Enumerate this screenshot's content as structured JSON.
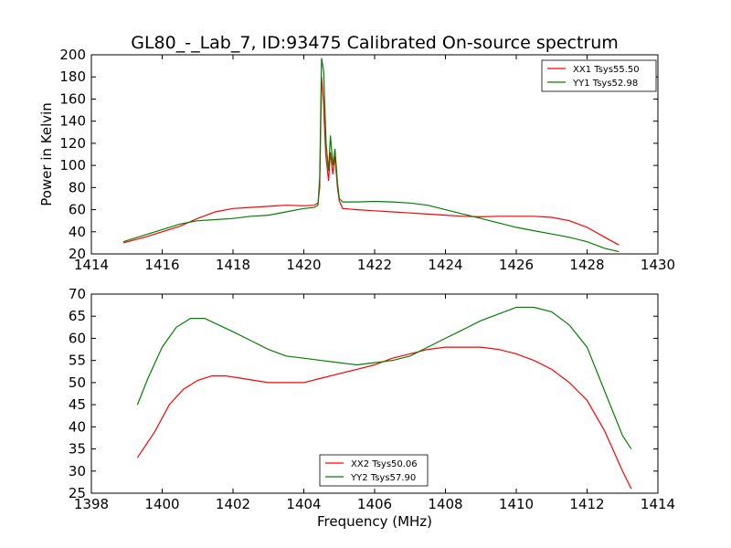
{
  "figure": {
    "title": "GL80_-_Lab_7, ID:93475 Calibrated On-source spectrum"
  },
  "chart_data": [
    {
      "type": "line",
      "title": "GL80_-_Lab_7, ID:93475 Calibrated On-source spectrum",
      "xlabel": "",
      "ylabel": "Power in Kelvin",
      "xlim": [
        1414,
        1430
      ],
      "ylim": [
        20,
        200
      ],
      "xticks": [
        "1414",
        "1416",
        "1418",
        "1420",
        "1422",
        "1424",
        "1426",
        "1428",
        "1430"
      ],
      "yticks": [
        "20",
        "40",
        "60",
        "80",
        "100",
        "120",
        "140",
        "160",
        "180",
        "200"
      ],
      "grid": false,
      "legend_position": "top-right",
      "series": [
        {
          "name": "XX1 Tsys55.50",
          "color": "#ff0000",
          "points": [
            [
              1414.9,
              30
            ],
            [
              1415.5,
              35
            ],
            [
              1416,
              40
            ],
            [
              1416.5,
              45
            ],
            [
              1417,
              52
            ],
            [
              1417.5,
              58
            ],
            [
              1418,
              61
            ],
            [
              1418.5,
              62
            ],
            [
              1419,
              63
            ],
            [
              1419.5,
              64
            ],
            [
              1420,
              63.5
            ],
            [
              1420.3,
              64
            ],
            [
              1420.4,
              66
            ],
            [
              1420.45,
              80
            ],
            [
              1420.5,
              180
            ],
            [
              1420.55,
              160
            ],
            [
              1420.62,
              110
            ],
            [
              1420.7,
              86
            ],
            [
              1420.75,
              112
            ],
            [
              1420.82,
              92
            ],
            [
              1420.88,
              108
            ],
            [
              1420.95,
              80
            ],
            [
              1421,
              68
            ],
            [
              1421.1,
              61
            ],
            [
              1421.5,
              60
            ],
            [
              1422,
              59
            ],
            [
              1422.5,
              58
            ],
            [
              1423,
              57
            ],
            [
              1423.5,
              56
            ],
            [
              1424,
              55
            ],
            [
              1424.5,
              54
            ],
            [
              1425,
              53.5
            ],
            [
              1425.5,
              54
            ],
            [
              1426,
              54
            ],
            [
              1426.5,
              54
            ],
            [
              1427,
              53
            ],
            [
              1427.5,
              50
            ],
            [
              1428,
              44
            ],
            [
              1428.5,
              35
            ],
            [
              1428.9,
              28
            ]
          ]
        },
        {
          "name": "YY1 Tsys52.98",
          "color": "#008000",
          "points": [
            [
              1414.9,
              31
            ],
            [
              1415.5,
              37
            ],
            [
              1416,
              42
            ],
            [
              1416.5,
              47
            ],
            [
              1417,
              50
            ],
            [
              1417.5,
              51
            ],
            [
              1418,
              52
            ],
            [
              1418.5,
              54
            ],
            [
              1419,
              55
            ],
            [
              1419.5,
              58
            ],
            [
              1420,
              61
            ],
            [
              1420.3,
              62
            ],
            [
              1420.4,
              64
            ],
            [
              1420.45,
              90
            ],
            [
              1420.5,
              197
            ],
            [
              1420.56,
              185
            ],
            [
              1420.63,
              120
            ],
            [
              1420.7,
              95
            ],
            [
              1420.75,
              127
            ],
            [
              1420.82,
              100
            ],
            [
              1420.88,
              115
            ],
            [
              1420.95,
              85
            ],
            [
              1421,
              70
            ],
            [
              1421.1,
              67
            ],
            [
              1421.5,
              67
            ],
            [
              1422,
              67.5
            ],
            [
              1422.5,
              67
            ],
            [
              1423,
              66
            ],
            [
              1423.5,
              64
            ],
            [
              1424,
              60
            ],
            [
              1424.5,
              56
            ],
            [
              1425,
              52
            ],
            [
              1425.5,
              48
            ],
            [
              1426,
              44
            ],
            [
              1426.5,
              41
            ],
            [
              1427,
              38
            ],
            [
              1427.5,
              35
            ],
            [
              1428,
              31
            ],
            [
              1428.5,
              25
            ],
            [
              1428.9,
              22
            ]
          ]
        }
      ]
    },
    {
      "type": "line",
      "title": "",
      "xlabel": "Frequency (MHz)",
      "ylabel": "",
      "xlim": [
        1398,
        1414
      ],
      "ylim": [
        25,
        70
      ],
      "xticks": [
        "1398",
        "1400",
        "1402",
        "1404",
        "1406",
        "1408",
        "1410",
        "1412",
        "1414"
      ],
      "yticks": [
        "25",
        "30",
        "35",
        "40",
        "45",
        "50",
        "55",
        "60",
        "65",
        "70"
      ],
      "grid": false,
      "legend_position": "lower-center",
      "series": [
        {
          "name": "XX2 Tsys50.06",
          "color": "#ff0000",
          "points": [
            [
              1399.3,
              33
            ],
            [
              1399.8,
              39
            ],
            [
              1400.2,
              45
            ],
            [
              1400.6,
              48.5
            ],
            [
              1401,
              50.5
            ],
            [
              1401.4,
              51.5
            ],
            [
              1401.8,
              51.5
            ],
            [
              1402.2,
              51
            ],
            [
              1402.6,
              50.5
            ],
            [
              1403,
              50
            ],
            [
              1403.5,
              50
            ],
            [
              1404,
              50
            ],
            [
              1404.5,
              51
            ],
            [
              1405,
              52
            ],
            [
              1405.5,
              53
            ],
            [
              1406,
              54
            ],
            [
              1406.5,
              55.5
            ],
            [
              1407,
              56.5
            ],
            [
              1407.5,
              57.5
            ],
            [
              1408,
              58
            ],
            [
              1408.5,
              58
            ],
            [
              1409,
              58
            ],
            [
              1409.5,
              57.5
            ],
            [
              1410,
              56.5
            ],
            [
              1410.5,
              55
            ],
            [
              1411,
              53
            ],
            [
              1411.5,
              50
            ],
            [
              1412,
              46
            ],
            [
              1412.5,
              39
            ],
            [
              1413,
              30
            ],
            [
              1413.25,
              26
            ]
          ]
        },
        {
          "name": "YY2 Tsys57.90",
          "color": "#008000",
          "points": [
            [
              1399.3,
              45
            ],
            [
              1399.6,
              51
            ],
            [
              1400,
              58
            ],
            [
              1400.4,
              62.5
            ],
            [
              1400.8,
              64.5
            ],
            [
              1401.2,
              64.5
            ],
            [
              1401.6,
              63
            ],
            [
              1402,
              61.5
            ],
            [
              1402.5,
              59.5
            ],
            [
              1403,
              57.5
            ],
            [
              1403.5,
              56
            ],
            [
              1404,
              55.5
            ],
            [
              1404.5,
              55
            ],
            [
              1405,
              54.5
            ],
            [
              1405.5,
              54
            ],
            [
              1406,
              54.5
            ],
            [
              1406.5,
              55
            ],
            [
              1407,
              56
            ],
            [
              1407.5,
              58
            ],
            [
              1408,
              60
            ],
            [
              1408.5,
              62
            ],
            [
              1409,
              64
            ],
            [
              1409.5,
              65.5
            ],
            [
              1410,
              67
            ],
            [
              1410.5,
              67
            ],
            [
              1411,
              66
            ],
            [
              1411.5,
              63
            ],
            [
              1412,
              58
            ],
            [
              1412.5,
              48
            ],
            [
              1413,
              38
            ],
            [
              1413.25,
              35
            ]
          ]
        }
      ]
    }
  ]
}
